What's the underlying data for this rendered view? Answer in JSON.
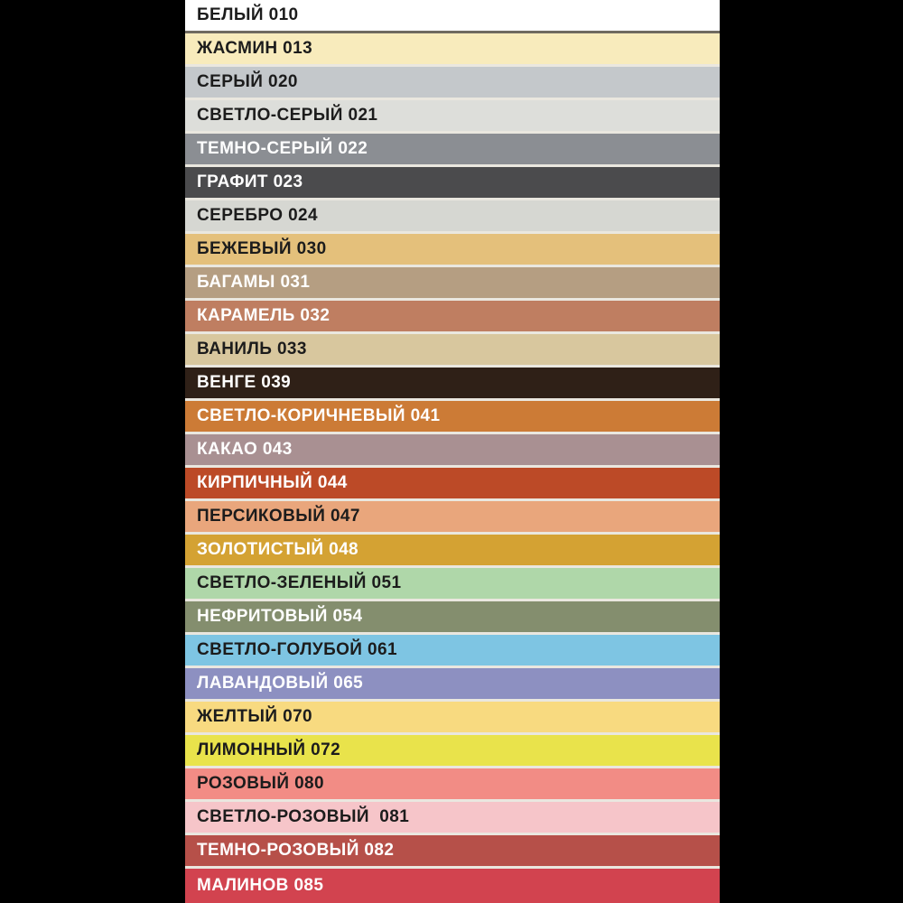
{
  "page": {
    "background_color": "#000000",
    "separator_color": "#EAE7DF",
    "first_separator_color": "#6F6A60",
    "dark_text_color": "#1C1C1C",
    "light_text_color": "#FFFFFF"
  },
  "chart_data": {
    "type": "table",
    "title": "",
    "columns": [
      "color_name_and_code",
      "swatch_color"
    ],
    "rows": [
      {
        "label": "БЕЛЫЙ 010",
        "color": "#FFFFFF",
        "text": "dark"
      },
      {
        "label": "ЖАСМИН 013",
        "color": "#F8EBBC",
        "text": "dark"
      },
      {
        "label": "СЕРЫЙ 020",
        "color": "#C4C8CB",
        "text": "dark"
      },
      {
        "label": "СВЕТЛО-СЕРЫЙ 021",
        "color": "#DDDEDA",
        "text": "dark"
      },
      {
        "label": "ТЕМНО-СЕРЫЙ 022",
        "color": "#8B8E93",
        "text": "light"
      },
      {
        "label": "ГРАФИТ 023",
        "color": "#4B4B4D",
        "text": "light"
      },
      {
        "label": "СЕРЕБРО 024",
        "color": "#D6D7D2",
        "text": "dark"
      },
      {
        "label": "БЕЖЕВЫЙ 030",
        "color": "#E4C07B",
        "text": "dark"
      },
      {
        "label": "БАГАМЫ 031",
        "color": "#B59E82",
        "text": "light"
      },
      {
        "label": "КАРАМЕЛЬ 032",
        "color": "#BF7E61",
        "text": "light"
      },
      {
        "label": "ВАНИЛЬ 033",
        "color": "#D8C79E",
        "text": "dark"
      },
      {
        "label": "ВЕНГЕ 039",
        "color": "#2F2017",
        "text": "light"
      },
      {
        "label": "СВЕТЛО-КОРИЧНЕВЫЙ 041",
        "color": "#CC7B36",
        "text": "light"
      },
      {
        "label": "КАКАО 043",
        "color": "#A99092",
        "text": "light"
      },
      {
        "label": "КИРПИЧНЫЙ 044",
        "color": "#BC4A27",
        "text": "light"
      },
      {
        "label": "ПЕРСИКОВЫЙ 047",
        "color": "#E9A67C",
        "text": "dark"
      },
      {
        "label": "ЗОЛОТИСТЫЙ 048",
        "color": "#D4A233",
        "text": "light"
      },
      {
        "label": "СВЕТЛО-ЗЕЛЕНЫЙ 051",
        "color": "#AFD7A9",
        "text": "dark"
      },
      {
        "label": "НЕФРИТОВЫЙ 054",
        "color": "#848E6E",
        "text": "light"
      },
      {
        "label": "СВЕТЛО-ГОЛУБОЙ 061",
        "color": "#7EC5E3",
        "text": "dark"
      },
      {
        "label": "ЛАВАНДОВЫЙ 065",
        "color": "#8D90C1",
        "text": "light"
      },
      {
        "label": "ЖЕЛТЫЙ 070",
        "color": "#F8DA80",
        "text": "dark"
      },
      {
        "label": "ЛИМОННЫЙ 072",
        "color": "#E9E34B",
        "text": "dark"
      },
      {
        "label": "РОЗОВЫЙ 080",
        "color": "#F28C85",
        "text": "dark"
      },
      {
        "label": "СВЕТЛО-РОЗОВЫЙ  081",
        "color": "#F6C5C9",
        "text": "dark"
      },
      {
        "label": "ТЕМНО-РОЗОВЫЙ 082",
        "color": "#B65049",
        "text": "light"
      },
      {
        "label": "МАЛИНОВ 085",
        "color": "#D2434F",
        "text": "light"
      }
    ]
  }
}
